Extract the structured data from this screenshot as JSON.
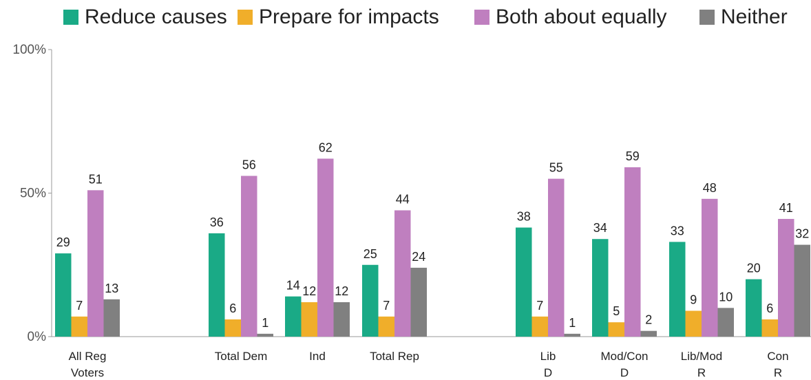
{
  "legend": [
    {
      "label": "Reduce causes",
      "color": "#1aaa86"
    },
    {
      "label": "Prepare for impacts",
      "color": "#f0ae2a"
    },
    {
      "label": "Both about equally",
      "color": "#bf7fbf"
    },
    {
      "label": "Neither",
      "color": "#808080"
    }
  ],
  "chart_data": {
    "type": "bar",
    "ylim": [
      0,
      100
    ],
    "y_ticks": [
      "0%",
      "50%",
      "100%"
    ],
    "grid": false,
    "legend_position": "top",
    "categories": [
      [
        "All Reg",
        "Voters"
      ],
      [
        "Total Dem"
      ],
      [
        "Ind"
      ],
      [
        "Total Rep"
      ],
      [
        "Lib",
        "D"
      ],
      [
        "Mod/Con",
        "D"
      ],
      [
        "Lib/Mod",
        "R"
      ],
      [
        "Con",
        "R"
      ]
    ],
    "series": [
      {
        "name": "Reduce causes",
        "color": "#1aaa86",
        "values": [
          29,
          36,
          14,
          25,
          38,
          34,
          33,
          20
        ]
      },
      {
        "name": "Prepare for impacts",
        "color": "#f0ae2a",
        "values": [
          7,
          6,
          12,
          7,
          7,
          5,
          9,
          6
        ]
      },
      {
        "name": "Both about equally",
        "color": "#bf7fbf",
        "values": [
          51,
          56,
          62,
          44,
          55,
          59,
          48,
          41
        ]
      },
      {
        "name": "Neither",
        "color": "#808080",
        "values": [
          13,
          1,
          12,
          24,
          1,
          2,
          10,
          32
        ]
      }
    ]
  }
}
